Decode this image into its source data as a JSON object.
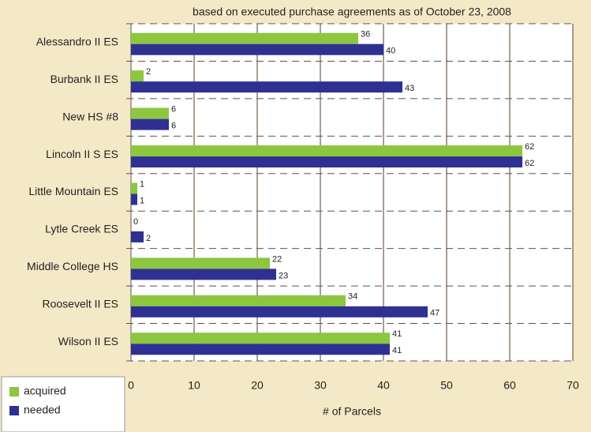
{
  "chart_data": {
    "type": "hbar",
    "subtitle": "based on executed purchase agreements as of October 23, 2008",
    "x_label": "# of Parcels",
    "categories": [
      "Alessandro II ES",
      "Burbank II ES",
      "New HS #8",
      "Lincoln II S ES",
      "Little Mountain ES",
      "Lytle Creek ES",
      "Middle College HS",
      "Roosevelt II ES",
      "Wilson II ES"
    ],
    "series": [
      {
        "name": "acquired",
        "color": "#8dc63f",
        "values": [
          36,
          2,
          6,
          62,
          1,
          0,
          22,
          34,
          41
        ]
      },
      {
        "name": "needed",
        "color": "#2e3192",
        "values": [
          40,
          43,
          6,
          62,
          1,
          2,
          23,
          47,
          41
        ]
      }
    ],
    "xlim": [
      0,
      70
    ],
    "xticks": [
      0,
      10,
      20,
      30,
      40,
      50,
      60,
      70
    ],
    "grid": true,
    "legend": "bottom-left"
  }
}
